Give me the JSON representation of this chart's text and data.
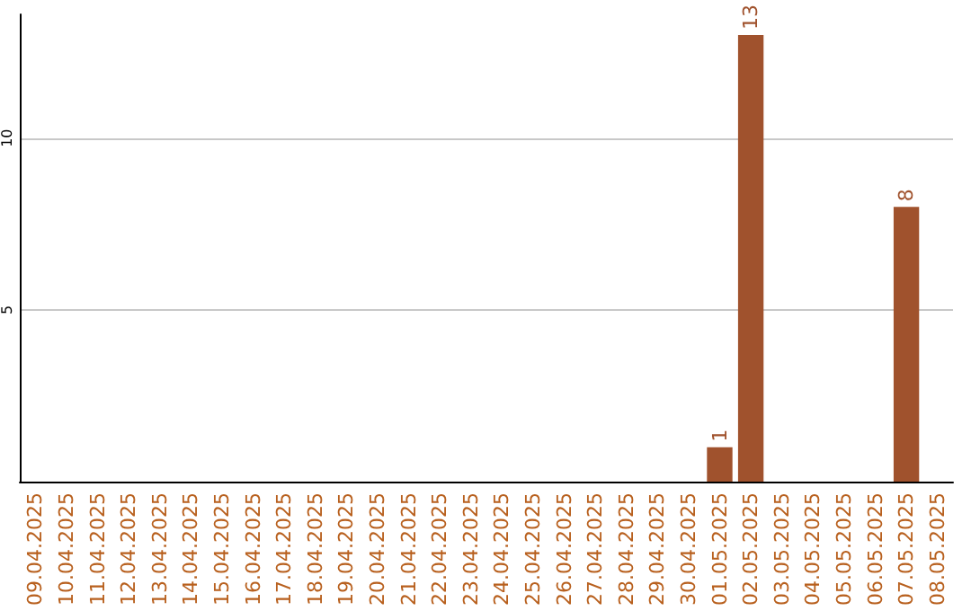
{
  "chart_data": {
    "type": "bar",
    "categories": [
      "09.04.2025",
      "10.04.2025",
      "11.04.2025",
      "12.04.2025",
      "13.04.2025",
      "14.04.2025",
      "15.04.2025",
      "16.04.2025",
      "17.04.2025",
      "18.04.2025",
      "19.04.2025",
      "20.04.2025",
      "21.04.2025",
      "22.04.2025",
      "23.04.2025",
      "24.04.2025",
      "25.04.2025",
      "26.04.2025",
      "27.04.2025",
      "28.04.2025",
      "29.04.2025",
      "30.04.2025",
      "01.05.2025",
      "02.05.2025",
      "03.05.2025",
      "04.05.2025",
      "05.05.2025",
      "06.05.2025",
      "07.05.2025",
      "08.05.2025"
    ],
    "values": [
      0,
      0,
      0,
      0,
      0,
      0,
      0,
      0,
      0,
      0,
      0,
      0,
      0,
      0,
      0,
      0,
      0,
      0,
      0,
      0,
      0,
      0,
      1,
      13,
      0,
      0,
      0,
      0,
      8,
      0
    ],
    "value_labels": [
      null,
      null,
      null,
      null,
      null,
      null,
      null,
      null,
      null,
      null,
      null,
      null,
      null,
      null,
      null,
      null,
      null,
      null,
      null,
      null,
      null,
      null,
      "1",
      "13",
      null,
      null,
      null,
      null,
      "8",
      null
    ],
    "color": "#a0522d",
    "ylim": [
      0,
      13.6
    ],
    "yticks": [
      5,
      10
    ],
    "grid": "y"
  }
}
